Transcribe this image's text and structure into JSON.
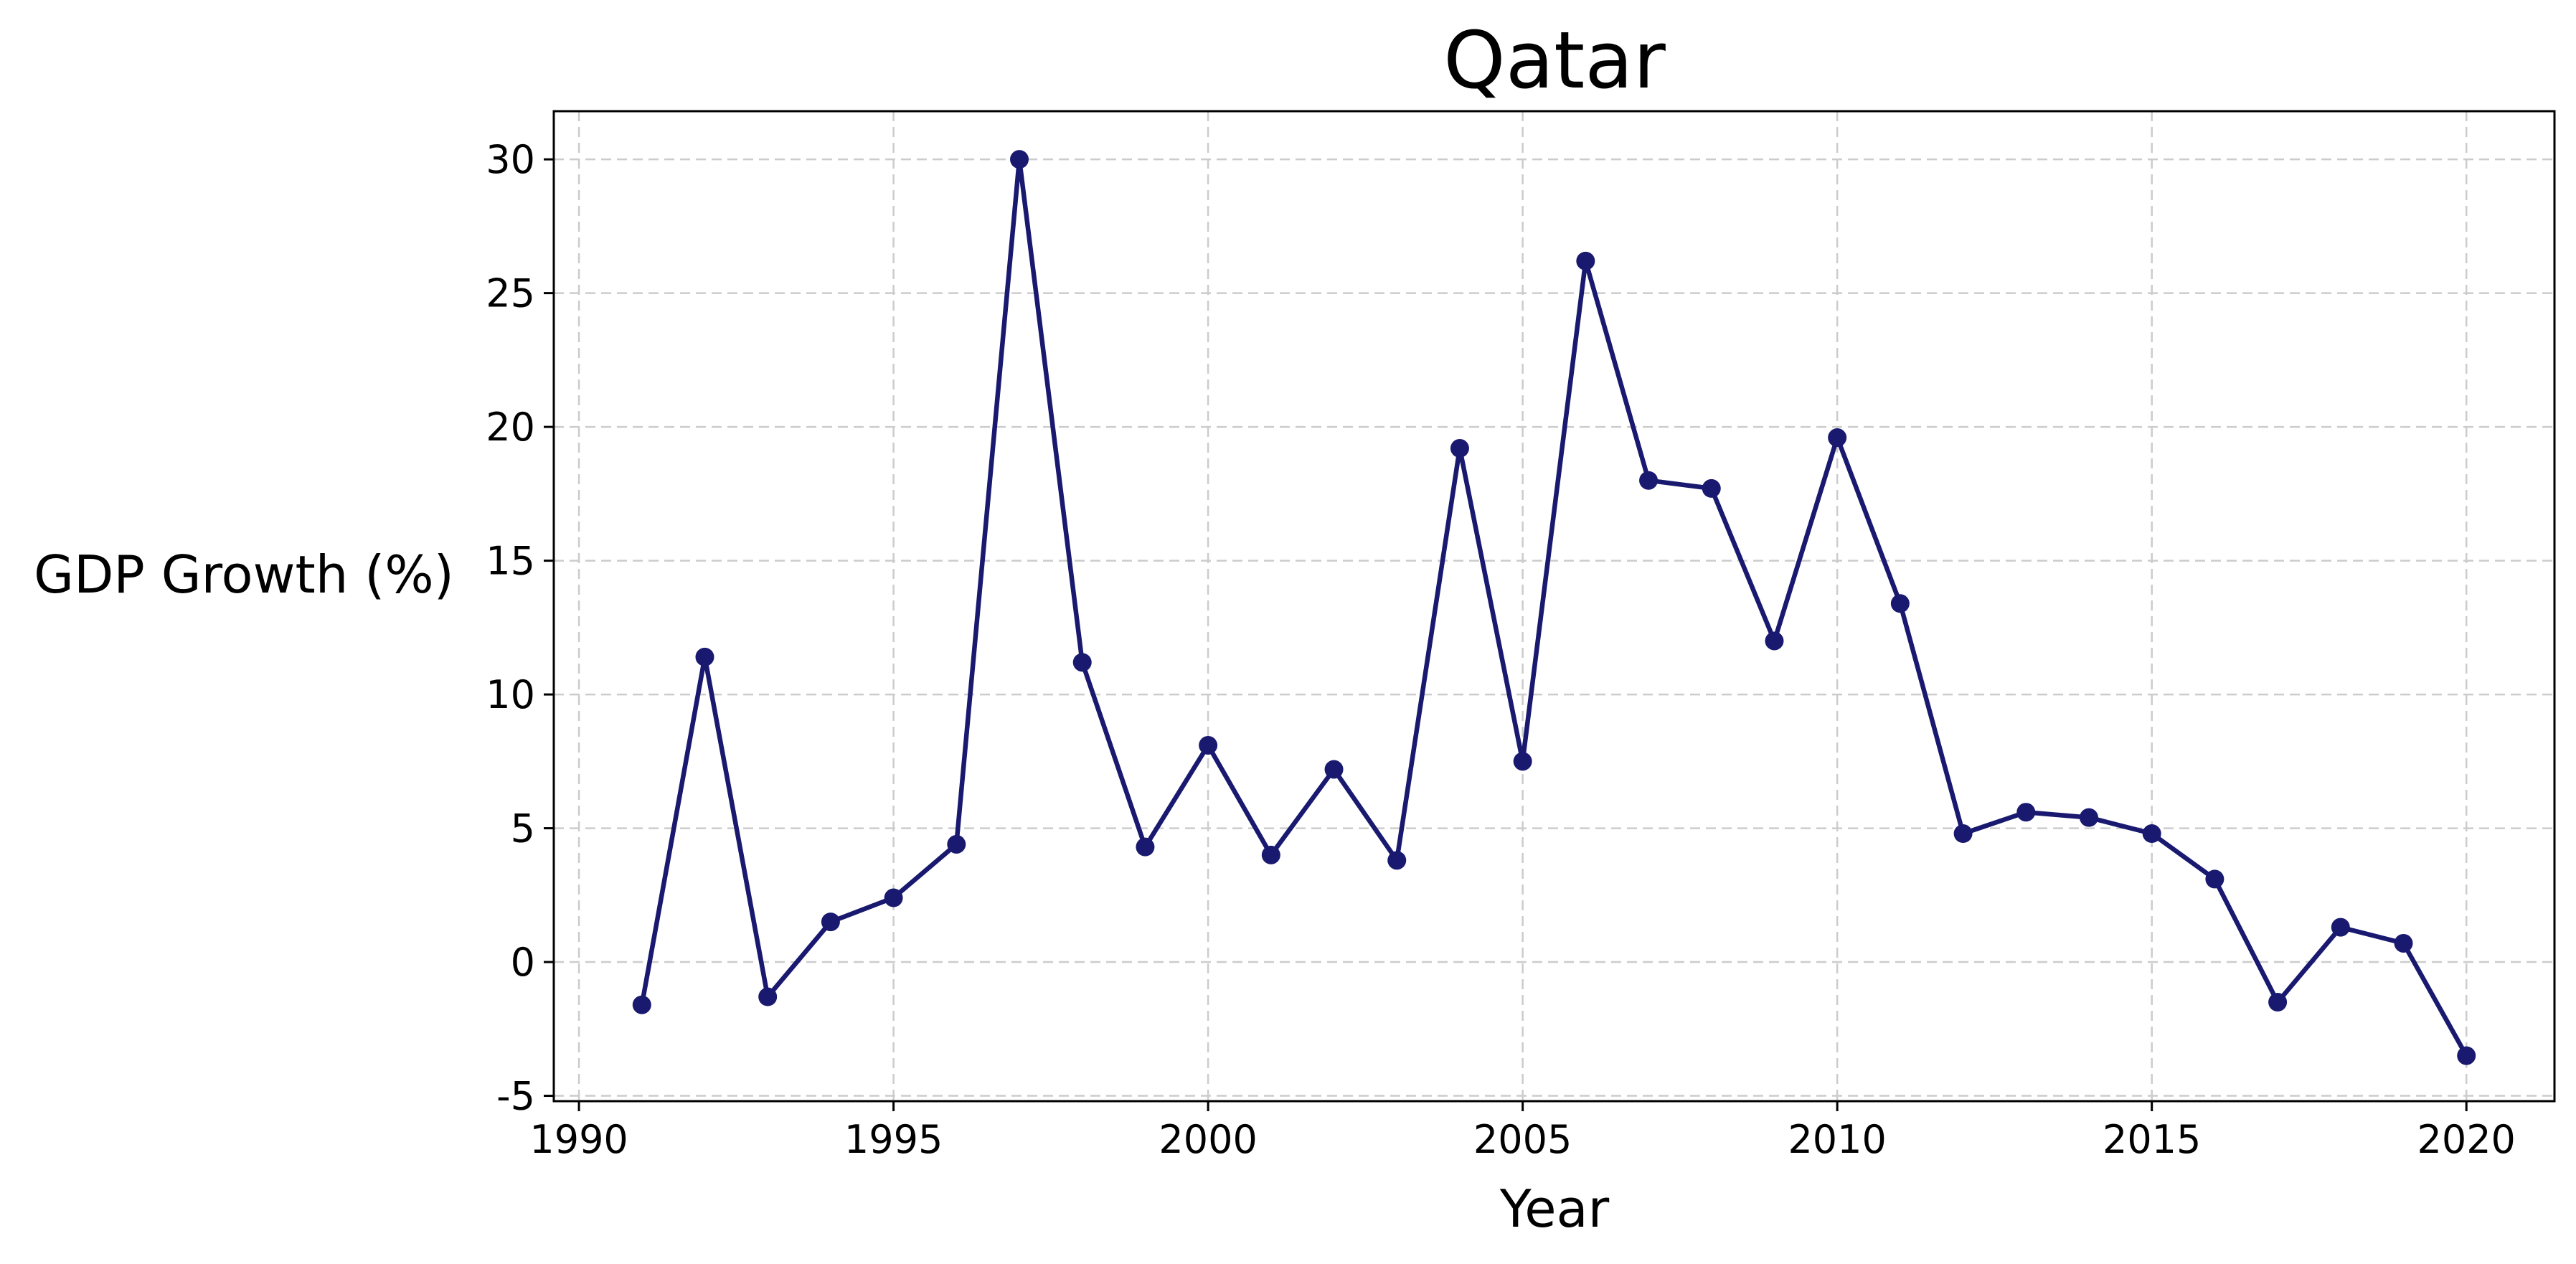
{
  "chart_data": {
    "type": "line",
    "title": "Qatar",
    "xlabel": "Year",
    "ylabel": "GDP Growth (%)",
    "xlim": [
      1989.6,
      2021.4
    ],
    "ylim": [
      -5.2,
      31.8
    ],
    "x_ticks": [
      1990,
      1995,
      2000,
      2005,
      2010,
      2015,
      2020
    ],
    "x_tick_labels": [
      "1990",
      "1995",
      "2000",
      "2005",
      "2010",
      "2015",
      "2020"
    ],
    "y_ticks": [
      -5,
      0,
      5,
      10,
      15,
      20,
      25,
      30
    ],
    "y_tick_labels": [
      "-5",
      "0",
      "5",
      "10",
      "15",
      "20",
      "25",
      "30"
    ],
    "grid": true,
    "color": "#191970",
    "marker": "circle",
    "series": [
      {
        "x": [
          1991,
          1992,
          1993,
          1994,
          1995,
          1996,
          1997,
          1998,
          1999,
          2000,
          2001,
          2002,
          2003,
          2004,
          2005,
          2006,
          2007,
          2008,
          2009,
          2010,
          2011,
          2012,
          2013,
          2014,
          2015,
          2016,
          2017,
          2018,
          2019,
          2020
        ],
        "values": [
          -1.6,
          11.4,
          -1.3,
          1.5,
          2.4,
          4.4,
          30.0,
          11.2,
          4.3,
          8.1,
          4.0,
          7.2,
          3.8,
          19.2,
          7.5,
          26.2,
          18.0,
          17.7,
          12.0,
          19.6,
          13.4,
          4.8,
          5.6,
          5.4,
          4.8,
          3.1,
          -1.5,
          1.3,
          0.7,
          -3.5
        ]
      }
    ]
  }
}
